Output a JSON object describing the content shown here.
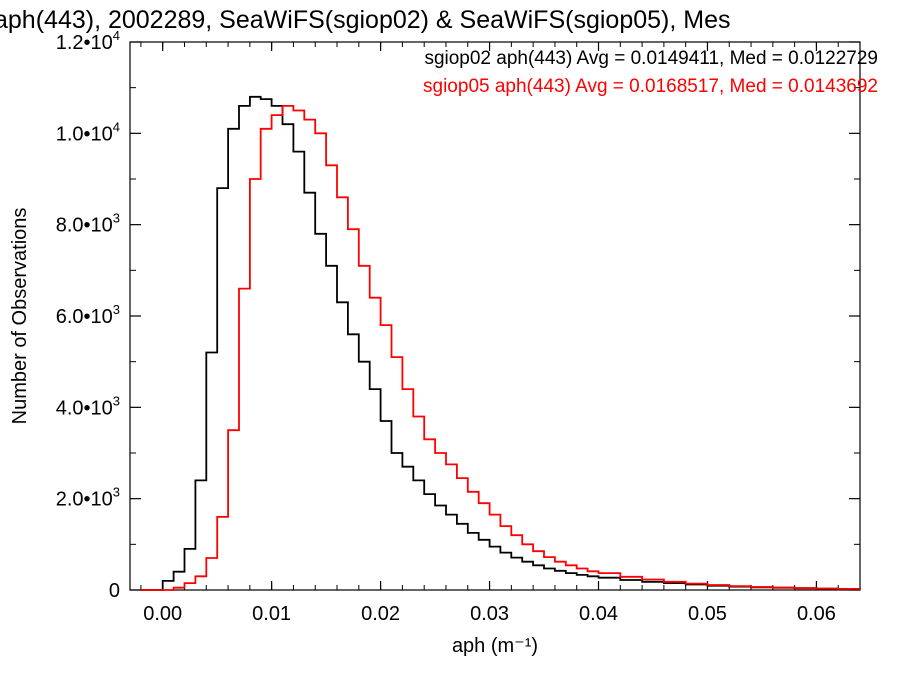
{
  "chart_data": {
    "type": "line",
    "title": "aph(443), 2002289, SeaWiFS(sgiop02) & SeaWiFS(sgiop05), Mes",
    "xlabel": "aph (m⁻¹)",
    "ylabel": "Number of Observations",
    "xlim": [
      -0.003,
      0.064
    ],
    "ylim": [
      0,
      12000
    ],
    "x_ticks": [
      0.0,
      0.01,
      0.02,
      0.03,
      0.04,
      0.05,
      0.06
    ],
    "x_tick_labels": [
      "0.00",
      "0.01",
      "0.02",
      "0.03",
      "0.04",
      "0.05",
      "0.06"
    ],
    "y_ticks": [
      0,
      2000,
      4000,
      6000,
      8000,
      10000,
      12000
    ],
    "y_tick_labels": [
      {
        "mant": "0",
        "exp": ""
      },
      {
        "mant": "2.0•10",
        "exp": "3"
      },
      {
        "mant": "4.0•10",
        "exp": "3"
      },
      {
        "mant": "6.0•10",
        "exp": "3"
      },
      {
        "mant": "8.0•10",
        "exp": "3"
      },
      {
        "mant": "1.0•10",
        "exp": "4"
      },
      {
        "mant": "1.2•10",
        "exp": "4"
      }
    ],
    "grid": false,
    "legend_position": "top-right",
    "series": [
      {
        "name": "sgiop02 aph(443) Avg = 0.0149411, Med = 0.0122729",
        "color": "#000000",
        "x": [
          -0.002,
          0.0,
          0.001,
          0.002,
          0.003,
          0.004,
          0.005,
          0.006,
          0.007,
          0.008,
          0.009,
          0.01,
          0.011,
          0.012,
          0.013,
          0.014,
          0.015,
          0.016,
          0.017,
          0.018,
          0.019,
          0.02,
          0.021,
          0.022,
          0.023,
          0.024,
          0.025,
          0.026,
          0.027,
          0.028,
          0.029,
          0.03,
          0.031,
          0.032,
          0.033,
          0.034,
          0.035,
          0.036,
          0.037,
          0.038,
          0.039,
          0.04,
          0.042,
          0.044,
          0.046,
          0.048,
          0.05,
          0.052,
          0.054,
          0.056,
          0.058,
          0.06,
          0.062,
          0.064
        ],
        "y": [
          0,
          200,
          400,
          900,
          2400,
          5200,
          8800,
          10100,
          10600,
          10800,
          10750,
          10600,
          10200,
          9600,
          8700,
          7800,
          7100,
          6300,
          5600,
          5000,
          4400,
          3700,
          3000,
          2700,
          2400,
          2100,
          1850,
          1650,
          1450,
          1250,
          1100,
          950,
          820,
          710,
          620,
          540,
          470,
          420,
          370,
          330,
          300,
          270,
          220,
          180,
          150,
          120,
          95,
          75,
          60,
          50,
          40,
          30,
          25,
          20
        ]
      },
      {
        "name": "sgiop05 aph(443) Avg = 0.0168517, Med = 0.0143692",
        "color": "#ff0000",
        "x": [
          -0.002,
          0.0,
          0.001,
          0.002,
          0.003,
          0.004,
          0.005,
          0.006,
          0.007,
          0.008,
          0.009,
          0.01,
          0.011,
          0.012,
          0.013,
          0.014,
          0.015,
          0.016,
          0.017,
          0.018,
          0.019,
          0.02,
          0.021,
          0.022,
          0.023,
          0.024,
          0.025,
          0.026,
          0.027,
          0.028,
          0.029,
          0.03,
          0.031,
          0.032,
          0.033,
          0.034,
          0.035,
          0.036,
          0.037,
          0.038,
          0.039,
          0.04,
          0.042,
          0.044,
          0.046,
          0.048,
          0.05,
          0.052,
          0.054,
          0.056,
          0.058,
          0.06,
          0.062,
          0.064
        ],
        "y": [
          0,
          0,
          50,
          150,
          300,
          700,
          1600,
          3500,
          6600,
          9000,
          10100,
          10400,
          10600,
          10500,
          10300,
          10000,
          9300,
          8600,
          7900,
          7100,
          6400,
          5800,
          5100,
          4400,
          3800,
          3300,
          3000,
          2750,
          2450,
          2150,
          1900,
          1650,
          1400,
          1200,
          1000,
          850,
          720,
          620,
          540,
          470,
          410,
          370,
          290,
          230,
          180,
          140,
          110,
          85,
          65,
          50,
          40,
          30,
          25,
          20
        ]
      }
    ]
  }
}
